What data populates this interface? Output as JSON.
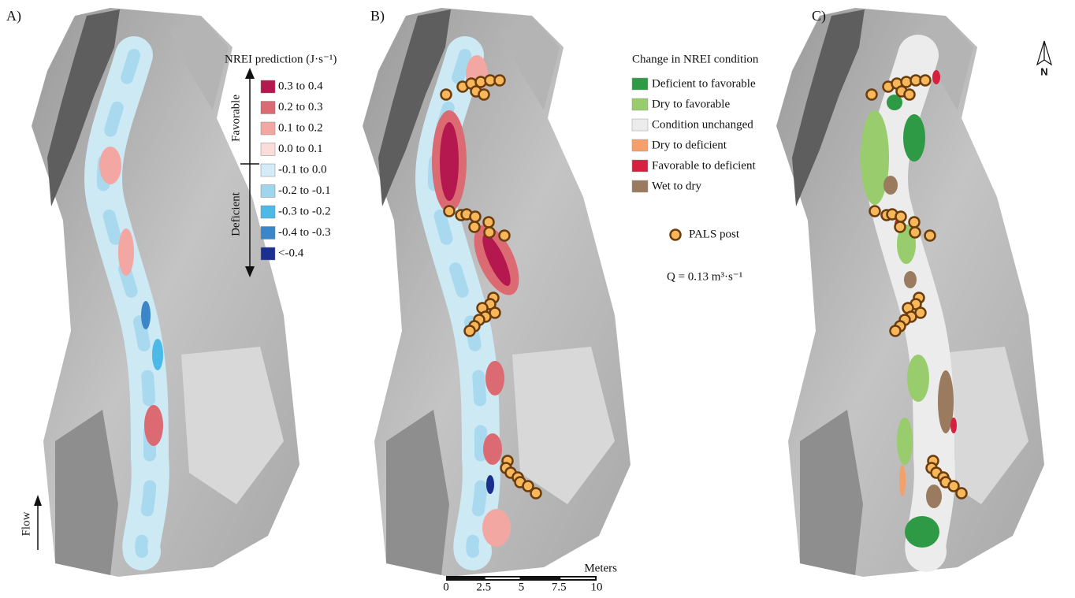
{
  "panels": [
    {
      "label": "A)"
    },
    {
      "label": "B)"
    },
    {
      "label": "C)"
    }
  ],
  "nrei_legend": {
    "title": "NREI prediction (J·s⁻¹)",
    "favorable": "Favorable",
    "deficient": "Deficient",
    "items": [
      {
        "label": "0.3 to 0.4",
        "color": "#b5174f"
      },
      {
        "label": "0.2 to 0.3",
        "color": "#dc6a73"
      },
      {
        "label": "0.1 to 0.2",
        "color": "#f3a7a3"
      },
      {
        "label": "0.0 to 0.1",
        "color": "#fbdcdb"
      },
      {
        "label": "-0.1 to 0.0",
        "color": "#d3ecf7"
      },
      {
        "label": "-0.2 to -0.1",
        "color": "#9fd6ee"
      },
      {
        "label": "-0.3 to -0.2",
        "color": "#4cb9e6"
      },
      {
        "label": "-0.4 to -0.3",
        "color": "#3a86c8"
      },
      {
        "label": "<-0.4",
        "color": "#1b2f8f"
      }
    ]
  },
  "change_legend": {
    "title": "Change in NREI condition",
    "items": [
      {
        "label": "Deficient to favorable",
        "color": "#2e9a46"
      },
      {
        "label": "Dry to favorable",
        "color": "#98cc6c"
      },
      {
        "label": "Condition unchanged",
        "color": "#ececec"
      },
      {
        "label": "Dry to deficient",
        "color": "#f4a06b"
      },
      {
        "label": "Favorable to deficient",
        "color": "#d5203f"
      },
      {
        "label": "Wet to dry",
        "color": "#9a7b5f"
      }
    ],
    "pals_post": "PALS post",
    "discharge": "Q = 0.13 m³·s⁻¹"
  },
  "north_label": "N",
  "flow_label": "Flow",
  "scale_bar": {
    "title": "Meters",
    "ticks": [
      0,
      2.5,
      5,
      7.5,
      10
    ]
  }
}
